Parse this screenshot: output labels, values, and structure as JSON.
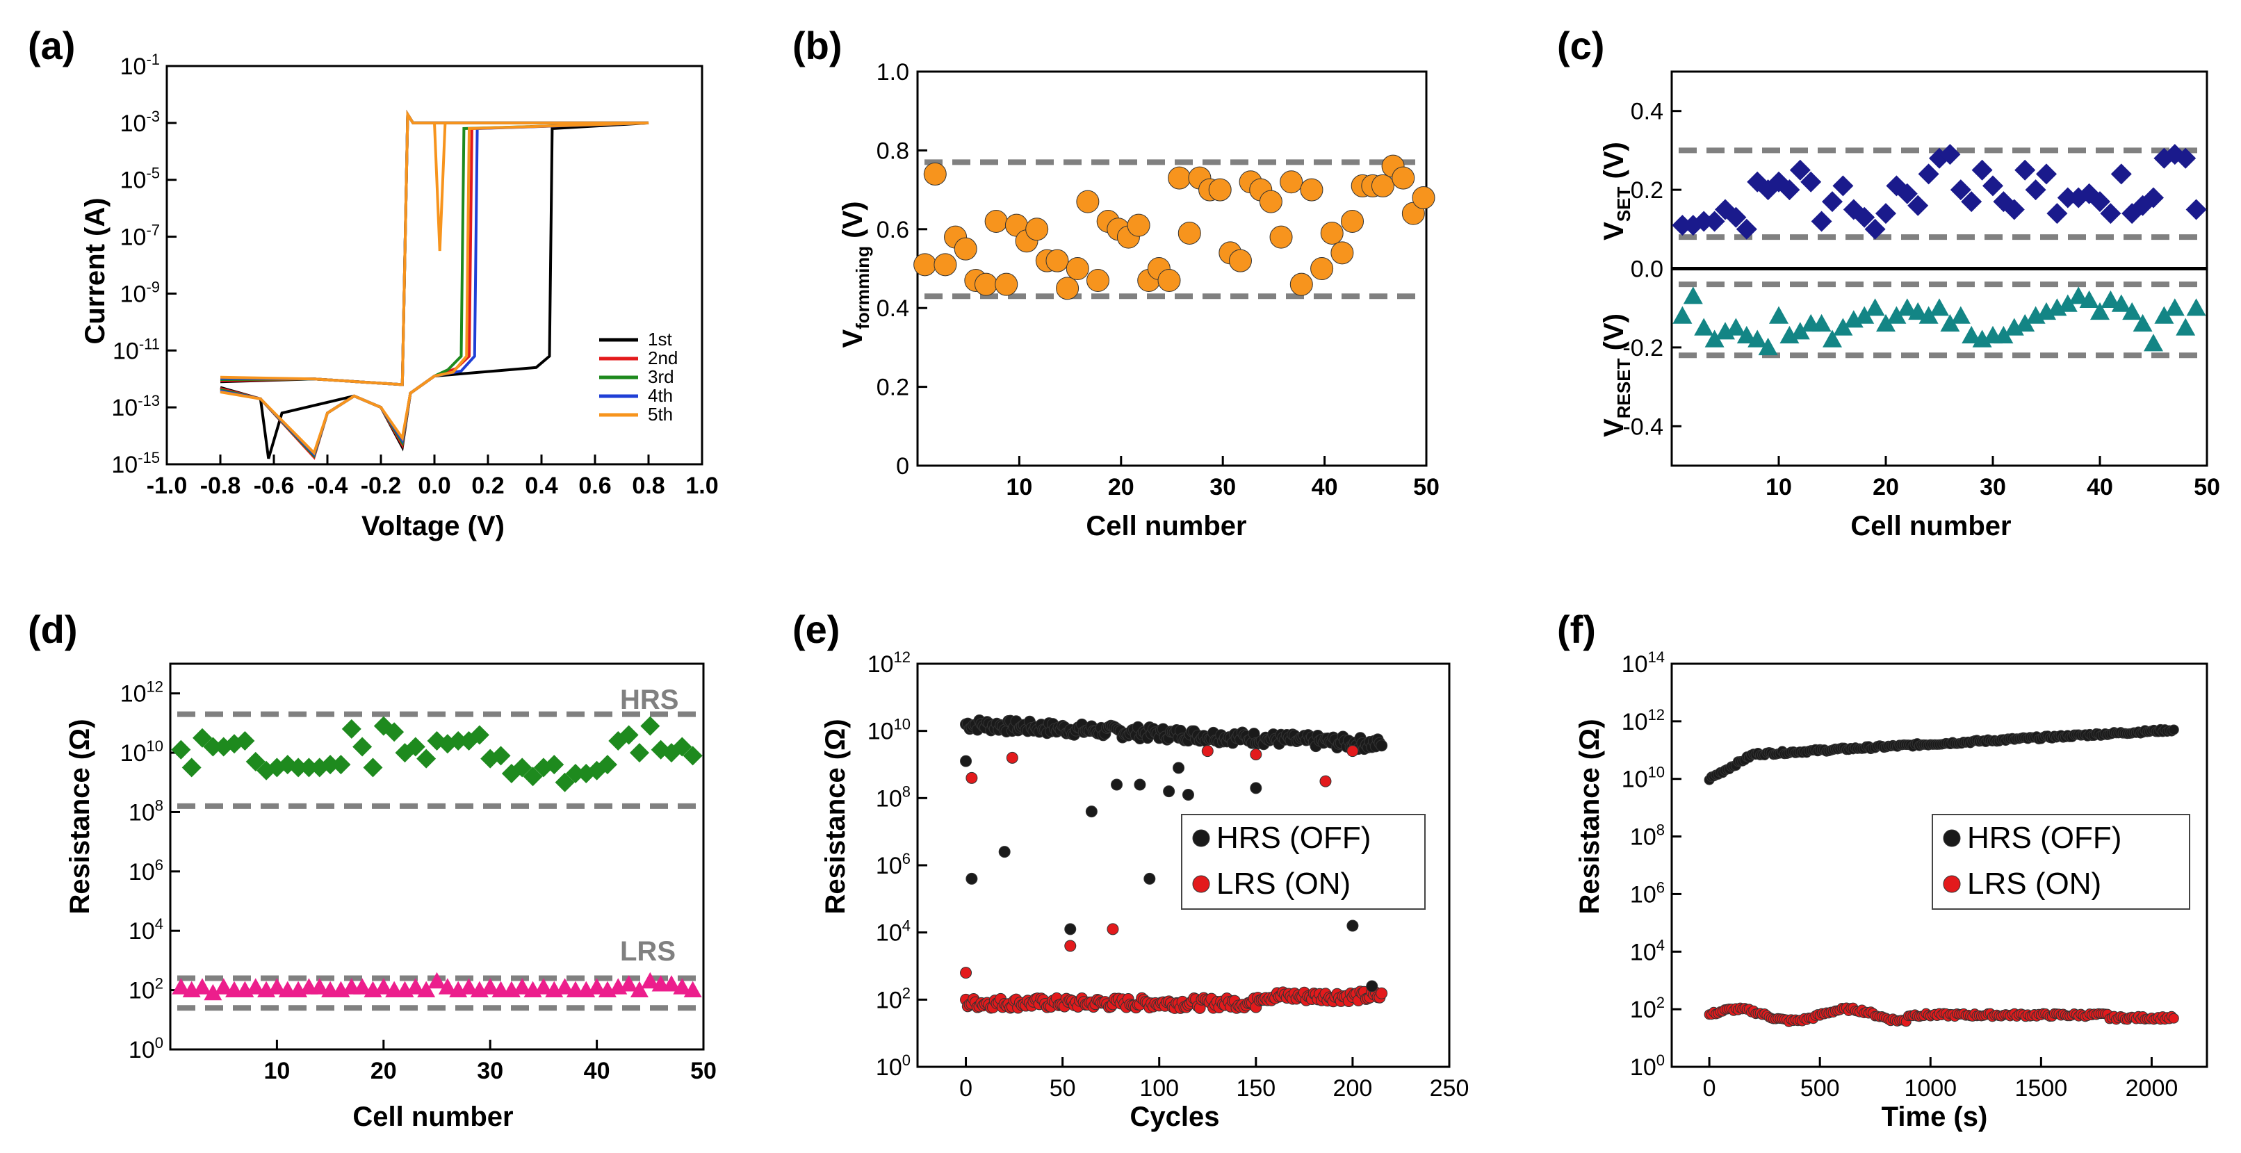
{
  "colors": {
    "axis": "#000000",
    "dash": "#808080",
    "orange": "#f7941d",
    "blue": "#1a1a8c",
    "teal": "#138585",
    "green": "#1e8a1e",
    "pink": "#ec1e8c",
    "black": "#1a1a1a",
    "red": "#e31a1c"
  },
  "chart_data": [
    {
      "panel": "(a)",
      "type": "line",
      "xlabel": "Voltage (V)",
      "ylabel": "Current (A)",
      "xlim": [
        -1.0,
        1.0
      ],
      "ylim_log10": [
        -15,
        -1
      ],
      "xticks": [
        "-1.0",
        "-0.8",
        "-0.6",
        "-0.4",
        "-0.2",
        "0.0",
        "0.2",
        "0.4",
        "0.6",
        "0.8",
        "1.0"
      ],
      "ytick_exponents": [
        "-1",
        "-3",
        "-5",
        "-7",
        "-9",
        "-11",
        "-13",
        "-15"
      ],
      "ytick_base": "10",
      "legend_position": "bottom-right",
      "series": [
        {
          "name": "1st",
          "color": "#000000",
          "set_voltage": 0.43
        },
        {
          "name": "2nd",
          "color": "#e31a1c",
          "set_voltage": 0.13
        },
        {
          "name": "3rd",
          "color": "#1e8a1e",
          "set_voltage": 0.1
        },
        {
          "name": "4th",
          "color": "#1f3fd6",
          "set_voltage": 0.15
        },
        {
          "name": "5th",
          "color": "#f7941d",
          "set_voltage": 0.12
        }
      ],
      "compliance_current_log10": -3
    },
    {
      "panel": "(b)",
      "type": "scatter",
      "xlabel": "Cell number",
      "ylabel_main": "V",
      "ylabel_sub": "formming",
      "ylabel_unit": " (V)",
      "xlim": [
        0,
        50
      ],
      "ylim": [
        0,
        1.0
      ],
      "xticks": [
        "10",
        "20",
        "30",
        "40",
        "50"
      ],
      "yticks": [
        "0",
        "0.2",
        "0.4",
        "0.6",
        "0.8",
        "1.0"
      ],
      "bounds": [
        0.43,
        0.77
      ],
      "x": [
        1,
        2,
        3,
        4,
        5,
        6,
        7,
        8,
        9,
        10,
        11,
        12,
        13,
        14,
        15,
        16,
        17,
        18,
        19,
        20,
        21,
        22,
        23,
        24,
        25,
        26,
        27,
        28,
        29,
        30,
        31,
        32,
        33,
        34,
        35,
        36,
        37,
        38,
        39,
        40,
        41,
        42,
        43,
        44,
        45,
        46,
        47,
        48,
        49,
        50
      ],
      "y": [
        0.51,
        0.74,
        0.51,
        0.58,
        0.55,
        0.47,
        0.46,
        0.62,
        0.46,
        0.61,
        0.57,
        0.6,
        0.52,
        0.52,
        0.45,
        0.5,
        0.67,
        0.47,
        0.62,
        0.6,
        0.58,
        0.61,
        0.47,
        0.5,
        0.47,
        0.73,
        0.59,
        0.73,
        0.7,
        0.7,
        0.54,
        0.52,
        0.72,
        0.7,
        0.67,
        0.58,
        0.72,
        0.46,
        0.7,
        0.5,
        0.59,
        0.54,
        0.62,
        0.71,
        0.71,
        0.71,
        0.76,
        0.73,
        0.64,
        0.68
      ]
    },
    {
      "panel": "(c)",
      "type": "scatter",
      "xlabel": "Cell number",
      "ylabel_set_main": "V",
      "ylabel_set_sub": "SET",
      "ylabel_reset_main": "V",
      "ylabel_reset_sub": "RESET",
      "ylabel_unit": " (V)",
      "xlim": [
        0,
        50
      ],
      "ylim": [
        -0.5,
        0.5
      ],
      "xticks": [
        "10",
        "20",
        "30",
        "40",
        "50"
      ],
      "yticks": [
        "0.4",
        "0.2",
        "0.0",
        "-0.2",
        "-0.4"
      ],
      "set_bounds": [
        0.08,
        0.3
      ],
      "reset_bounds": [
        -0.04,
        -0.22
      ],
      "x": [
        1,
        2,
        3,
        4,
        5,
        6,
        7,
        8,
        9,
        10,
        11,
        12,
        13,
        14,
        15,
        16,
        17,
        18,
        19,
        20,
        21,
        22,
        23,
        24,
        25,
        26,
        27,
        28,
        29,
        30,
        31,
        32,
        33,
        34,
        35,
        36,
        37,
        38,
        39,
        40,
        41,
        42,
        43,
        44,
        45,
        46,
        47,
        48,
        49
      ],
      "vset": [
        0.11,
        0.11,
        0.12,
        0.12,
        0.15,
        0.13,
        0.1,
        0.22,
        0.2,
        0.22,
        0.2,
        0.25,
        0.22,
        0.12,
        0.17,
        0.21,
        0.15,
        0.13,
        0.1,
        0.14,
        0.21,
        0.19,
        0.16,
        0.24,
        0.28,
        0.29,
        0.2,
        0.17,
        0.25,
        0.21,
        0.17,
        0.15,
        0.25,
        0.2,
        0.24,
        0.14,
        0.18,
        0.18,
        0.19,
        0.17,
        0.14,
        0.24,
        0.14,
        0.16,
        0.18,
        0.28,
        0.29,
        0.28,
        0.15
      ],
      "vreset": [
        -0.12,
        -0.07,
        -0.15,
        -0.18,
        -0.16,
        -0.15,
        -0.17,
        -0.18,
        -0.2,
        -0.12,
        -0.17,
        -0.16,
        -0.14,
        -0.14,
        -0.18,
        -0.15,
        -0.13,
        -0.12,
        -0.1,
        -0.14,
        -0.12,
        -0.1,
        -0.11,
        -0.12,
        -0.1,
        -0.14,
        -0.12,
        -0.17,
        -0.18,
        -0.17,
        -0.17,
        -0.15,
        -0.14,
        -0.12,
        -0.11,
        -0.1,
        -0.09,
        -0.07,
        -0.08,
        -0.11,
        -0.08,
        -0.09,
        -0.11,
        -0.14,
        -0.19,
        -0.12,
        -0.1,
        -0.15,
        -0.1
      ]
    },
    {
      "panel": "(d)",
      "type": "scatter",
      "xlabel": "Cell number",
      "ylabel": "Resistance (Ω)",
      "xlim": [
        0,
        50
      ],
      "ylim_log10": [
        0,
        13
      ],
      "xticks": [
        "10",
        "20",
        "30",
        "40",
        "50"
      ],
      "ytick_exponents": [
        "12",
        "10",
        "8",
        "6",
        "4",
        "2",
        "0"
      ],
      "ytick_base": "10",
      "hrs_label": "HRS",
      "lrs_label": "LRS",
      "hrs_bounds_log10": [
        8.2,
        11.3
      ],
      "lrs_bounds_log10": [
        1.4,
        2.4
      ],
      "x": [
        1,
        2,
        3,
        4,
        5,
        6,
        7,
        8,
        9,
        10,
        11,
        12,
        13,
        14,
        15,
        16,
        17,
        18,
        19,
        20,
        21,
        22,
        23,
        24,
        25,
        26,
        27,
        28,
        29,
        30,
        31,
        32,
        33,
        34,
        35,
        36,
        37,
        38,
        39,
        40,
        41,
        42,
        43,
        44,
        45,
        46,
        47,
        48,
        49
      ],
      "hrs_log10": [
        10.1,
        9.5,
        10.5,
        10.2,
        10.2,
        10.3,
        10.4,
        9.7,
        9.4,
        9.5,
        9.6,
        9.5,
        9.5,
        9.5,
        9.6,
        9.6,
        10.8,
        10.2,
        9.5,
        10.9,
        10.7,
        10.0,
        10.2,
        9.8,
        10.4,
        10.3,
        10.4,
        10.4,
        10.6,
        9.8,
        9.9,
        9.3,
        9.5,
        9.2,
        9.5,
        9.6,
        9.0,
        9.3,
        9.3,
        9.4,
        9.6,
        10.4,
        10.6,
        10.0,
        10.9,
        10.1,
        10.0,
        10.2,
        9.9
      ],
      "lrs_log10": [
        2.1,
        2.0,
        2.1,
        1.9,
        2.1,
        2.0,
        2.0,
        2.1,
        2.0,
        2.1,
        2.0,
        2.0,
        2.1,
        2.1,
        2.0,
        2.0,
        2.1,
        2.1,
        2.0,
        2.1,
        2.0,
        2.0,
        2.1,
        2.0,
        2.3,
        2.1,
        2.0,
        2.1,
        2.0,
        2.1,
        2.0,
        2.0,
        2.1,
        2.0,
        2.1,
        2.0,
        2.1,
        2.0,
        2.0,
        2.1,
        2.0,
        2.1,
        2.2,
        2.0,
        2.3,
        2.2,
        2.2,
        2.1,
        2.0
      ]
    },
    {
      "panel": "(e)",
      "type": "scatter",
      "xlabel": "Cycles",
      "ylabel": "Resistance (Ω)",
      "xlim": [
        -25,
        250
      ],
      "ylim_log10": [
        0,
        12
      ],
      "xticks": [
        "0",
        "50",
        "100",
        "150",
        "200",
        "250"
      ],
      "ytick_exponents": [
        "12",
        "10",
        "8",
        "6",
        "4",
        "2",
        "0"
      ],
      "ytick_base": "10",
      "legend": [
        "HRS (OFF)",
        "LRS (ON)"
      ],
      "legend_position": "center-right",
      "hrs_main_log10": [
        10.2,
        9.6
      ],
      "lrs_main_log10": 1.9,
      "hrs_outliers": [
        [
          0,
          9.1
        ],
        [
          3,
          5.6
        ],
        [
          20,
          6.4
        ],
        [
          54,
          4.1
        ],
        [
          65,
          7.6
        ],
        [
          78,
          8.4
        ],
        [
          90,
          8.4
        ],
        [
          95,
          5.6
        ],
        [
          105,
          8.2
        ],
        [
          110,
          8.9
        ],
        [
          115,
          8.1
        ],
        [
          150,
          8.3
        ],
        [
          200,
          4.2
        ],
        [
          210,
          2.4
        ]
      ],
      "lrs_outliers": [
        [
          0,
          2.8
        ],
        [
          3,
          8.6
        ],
        [
          24,
          9.2
        ],
        [
          54,
          3.6
        ],
        [
          76,
          4.1
        ],
        [
          125,
          9.4
        ],
        [
          150,
          9.3
        ],
        [
          186,
          8.5
        ],
        [
          200,
          9.4
        ]
      ],
      "cycles_max": 215
    },
    {
      "panel": "(f)",
      "type": "scatter",
      "xlabel": "Time (s)",
      "ylabel": "Resistance (Ω)",
      "xlim": [
        -170,
        2250
      ],
      "ylim_log10": [
        0,
        14
      ],
      "xticks": [
        "0",
        "500",
        "1000",
        "1500",
        "2000"
      ],
      "ytick_exponents": [
        "14",
        "12",
        "10",
        "8",
        "6",
        "4",
        "2",
        "0"
      ],
      "ytick_base": "10",
      "legend": [
        "HRS (OFF)",
        "LRS (ON)"
      ],
      "legend_position": "center-right",
      "hrs_start_log10": 10.0,
      "hrs_end_log10": 11.7,
      "lrs_level_log10": 1.8,
      "time_max": 2100
    }
  ]
}
